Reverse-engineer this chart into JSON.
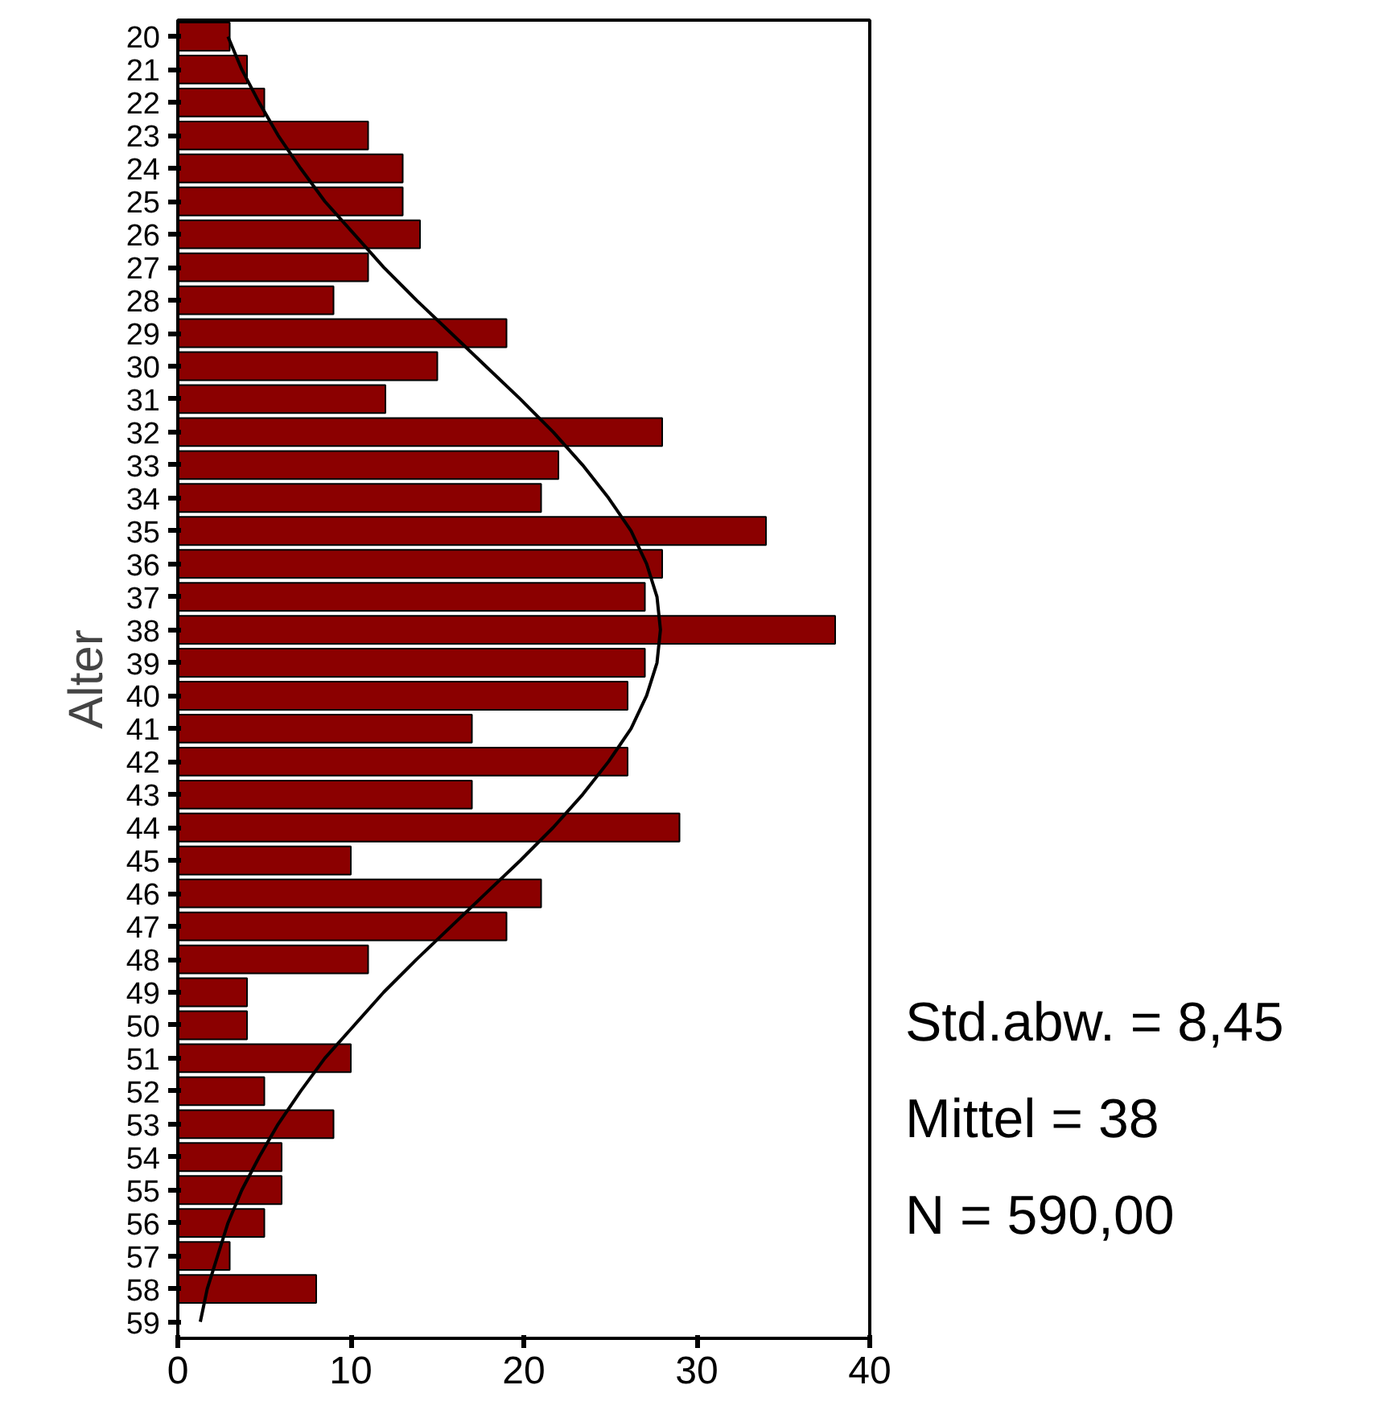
{
  "chart_data": {
    "type": "bar",
    "orientation": "horizontal",
    "ylabel": "Alter",
    "categories": [
      "20",
      "21",
      "22",
      "23",
      "24",
      "25",
      "26",
      "27",
      "28",
      "29",
      "30",
      "31",
      "32",
      "33",
      "34",
      "35",
      "36",
      "37",
      "38",
      "39",
      "40",
      "41",
      "42",
      "43",
      "44",
      "45",
      "46",
      "47",
      "48",
      "49",
      "50",
      "51",
      "52",
      "53",
      "54",
      "55",
      "56",
      "57",
      "58",
      "59"
    ],
    "series": [
      {
        "color": "#8b0000",
        "values": [
          3,
          4,
          5,
          11,
          13,
          13,
          14,
          11,
          9,
          19,
          15,
          12,
          28,
          22,
          21,
          34,
          28,
          27,
          38,
          27,
          26,
          17,
          26,
          17,
          29,
          10,
          21,
          19,
          11,
          4,
          4,
          10,
          5,
          9,
          6,
          6,
          5,
          3,
          8,
          0
        ]
      },
      {
        "type": "line",
        "color": "#000000",
        "values": [
          2.9,
          3.7,
          4.7,
          5.8,
          7.1,
          8.5,
          10.2,
          11.9,
          13.8,
          15.8,
          17.8,
          19.8,
          21.7,
          23.4,
          24.9,
          26.2,
          27.1,
          27.7,
          27.9,
          27.7,
          27.1,
          26.2,
          24.9,
          23.4,
          21.7,
          19.8,
          17.8,
          15.8,
          13.8,
          11.9,
          10.2,
          8.5,
          7.1,
          5.8,
          4.7,
          3.7,
          2.9,
          2.3,
          1.7,
          1.3
        ]
      }
    ],
    "xlim": [
      0,
      40
    ],
    "xticks": [
      0,
      10,
      20,
      30,
      40
    ],
    "grid": false,
    "annotations": [
      "Std.abw. = 8,45",
      "Mittel = 38",
      "N = 590,00"
    ]
  }
}
